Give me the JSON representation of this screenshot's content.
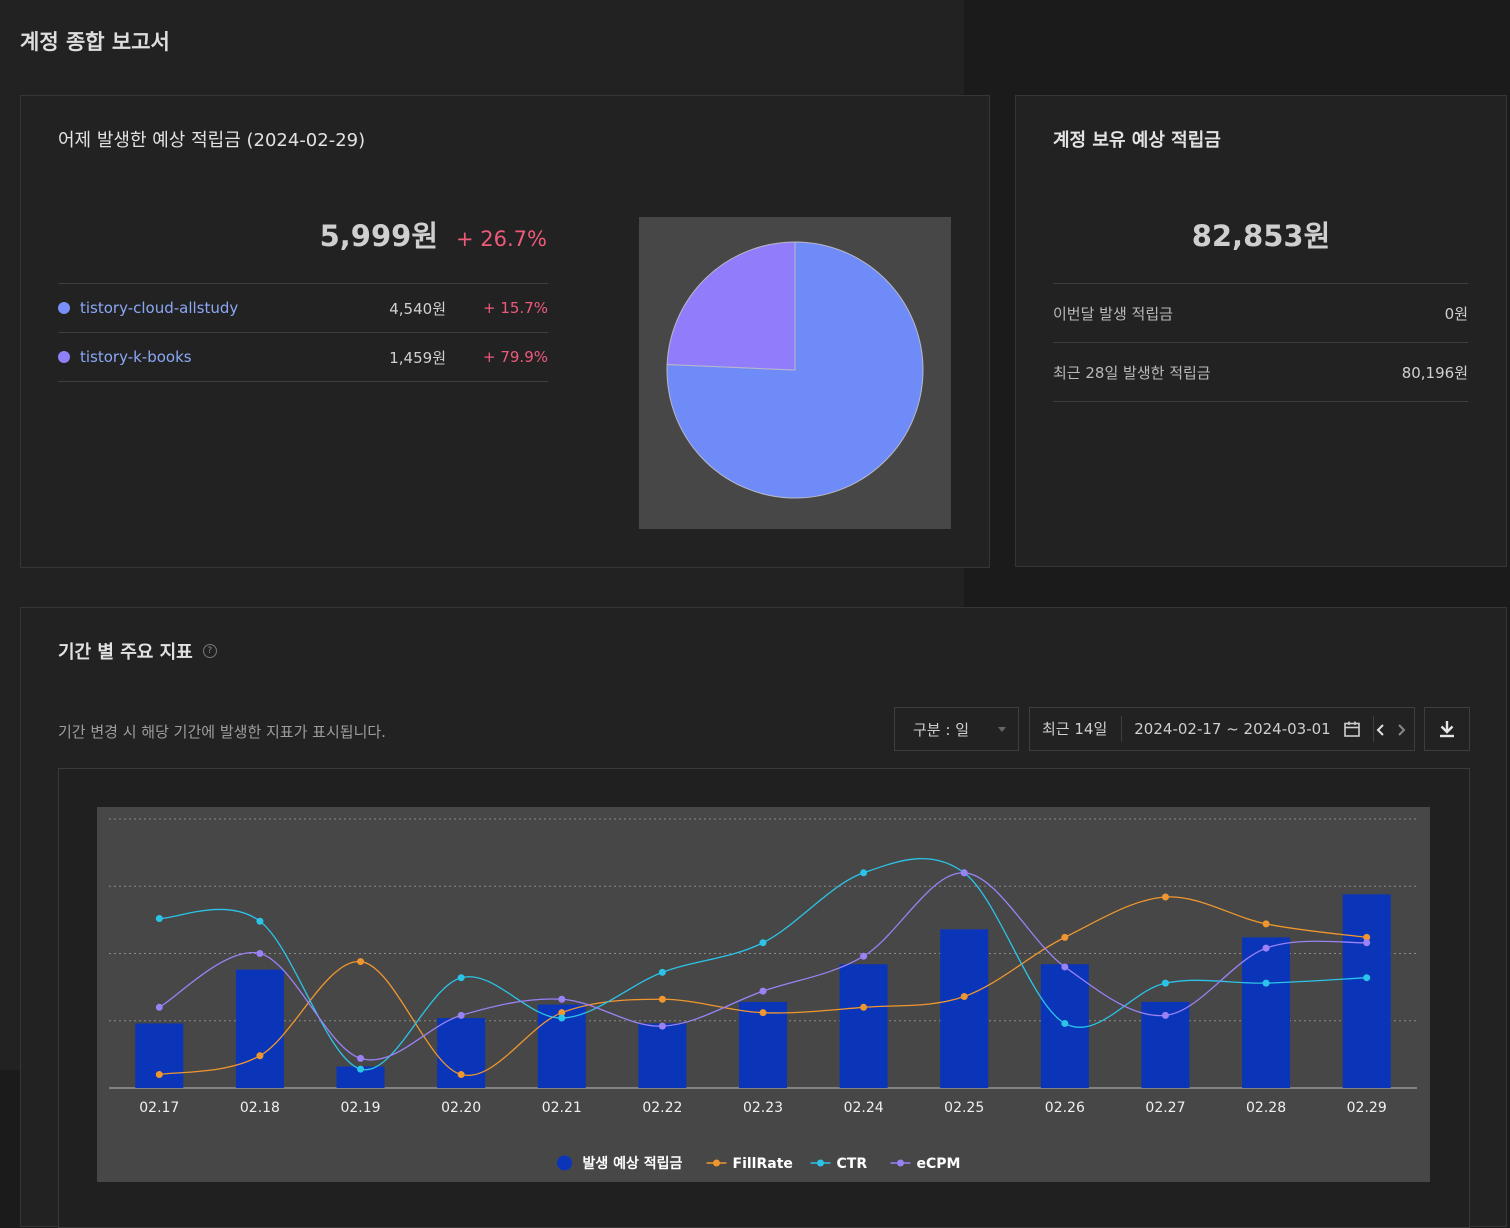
{
  "page": {
    "title": "계정 종합 보고서"
  },
  "yesterday_card": {
    "title": "어제 발생한 예상 적립금 (2024-02-29)",
    "total_amount": "5,999원",
    "total_change": "+ 26.7%",
    "sites": [
      {
        "name": "tistory-cloud-allstudy",
        "amount": "4,540원",
        "change": "+ 15.7%",
        "color": "#7b8ff8"
      },
      {
        "name": "tistory-k-books",
        "amount": "1,459원",
        "change": "+ 79.9%",
        "color": "#8f7ff8"
      }
    ],
    "pie_data": {
      "type": "pie",
      "slices": [
        {
          "label": "tistory-cloud-allstudy",
          "value": 4540,
          "color": "#6f8bf8"
        },
        {
          "label": "tistory-k-books",
          "value": 1459,
          "color": "#917dfb"
        }
      ]
    }
  },
  "balance_card": {
    "title": "계정 보유 예상 적립금",
    "total_amount": "82,853원",
    "rows": [
      {
        "label": "이번달 발생 적립금",
        "value": "0원"
      },
      {
        "label": "최근 28일 발생한 적립금",
        "value": "80,196원"
      }
    ]
  },
  "metrics_card": {
    "title": "기간 별 주요 지표",
    "help_icon": "question-circle-icon",
    "description": "기간 변경 시 해당 기간에 발생한 지표가 표시됩니다.",
    "unit_select": {
      "value": "구분 : 일"
    },
    "period_label": "최근 14일",
    "date_range": "2024-02-17 ~ 2024-03-01",
    "calendar_icon": "calendar-icon",
    "prev_icon": "chevron-left-icon",
    "next_icon": "chevron-right-icon",
    "download_icon": "download-icon"
  },
  "chart_data": {
    "type": "bar",
    "categories": [
      "02.17",
      "02.18",
      "02.19",
      "02.20",
      "02.21",
      "02.22",
      "02.23",
      "02.24",
      "02.25",
      "02.26",
      "02.27",
      "02.28",
      "02.29"
    ],
    "grid": true,
    "series": [
      {
        "name": "발생 예상 적립금",
        "type": "bar",
        "color": "#0a35b8",
        "values": [
          0.24,
          0.44,
          0.08,
          0.26,
          0.31,
          0.24,
          0.32,
          0.46,
          0.59,
          0.46,
          0.32,
          0.56,
          0.72
        ]
      },
      {
        "name": "FillRate",
        "type": "line",
        "color": "#f0962e",
        "values": [
          0.05,
          0.12,
          0.47,
          0.05,
          0.28,
          0.33,
          0.28,
          0.3,
          0.34,
          0.56,
          0.71,
          0.61,
          0.56
        ]
      },
      {
        "name": "CTR",
        "type": "line",
        "color": "#2bc4e8",
        "values": [
          0.63,
          0.62,
          0.07,
          0.41,
          0.26,
          0.43,
          0.54,
          0.8,
          0.8,
          0.24,
          0.39,
          0.39,
          0.41
        ]
      },
      {
        "name": "eCPM",
        "type": "line",
        "color": "#9a82f5",
        "values": [
          0.3,
          0.5,
          0.11,
          0.27,
          0.33,
          0.23,
          0.36,
          0.49,
          0.8,
          0.45,
          0.27,
          0.52,
          0.54
        ]
      }
    ]
  }
}
